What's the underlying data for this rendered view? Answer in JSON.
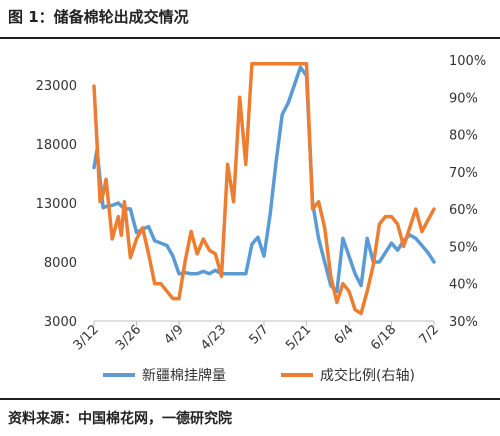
{
  "header": {
    "title": "图 1：储备棉轮出成交情况"
  },
  "footer": {
    "source": "资料来源：中国棉花网，一德研究院"
  },
  "chart_data": {
    "type": "line",
    "title": "",
    "x_tick_labels": [
      "3/12",
      "3/26",
      "4/9",
      "4/23",
      "5/7",
      "5/21",
      "6/4",
      "6/18",
      "7/2"
    ],
    "left_axis": {
      "ylim": [
        3000,
        23000
      ],
      "ticks": [
        "23000",
        "18000",
        "13000",
        "8000",
        "3000"
      ]
    },
    "right_axis": {
      "ylim": [
        30,
        100
      ],
      "ticks": [
        "100%",
        "90%",
        "80%",
        "70%",
        "60%",
        "50%",
        "40%",
        "30%"
      ]
    },
    "x_range": [
      0,
      112
    ],
    "legend_position": "bottom",
    "grid": false,
    "colors": {
      "listed": "#5b9bd5",
      "ratio": "#ed7d31"
    },
    "series": [
      {
        "name": "新疆棉挂牌量",
        "axis": "left",
        "x": [
          0,
          1,
          3,
          4,
          6,
          8,
          10,
          12,
          14,
          16,
          18,
          20,
          22,
          24,
          26,
          28,
          30,
          32,
          34,
          36,
          38,
          40,
          42,
          44,
          46,
          48,
          50,
          52,
          54,
          56,
          58,
          60,
          62,
          64,
          66,
          68,
          70,
          72,
          74,
          76,
          78,
          80,
          82,
          84,
          86,
          88,
          90,
          92,
          94,
          96,
          98,
          100,
          102,
          104,
          106,
          108,
          110,
          112
        ],
        "values": [
          16000,
          17500,
          12600,
          12700,
          12800,
          13000,
          12500,
          12500,
          10500,
          10800,
          11000,
          9800,
          9600,
          9400,
          8500,
          7000,
          7100,
          7000,
          7000,
          7200,
          7000,
          7300,
          7000,
          7000,
          7000,
          7000,
          7000,
          9500,
          10100,
          8500,
          12000,
          16500,
          20500,
          21500,
          23000,
          24500,
          23800,
          13000,
          10000,
          8000,
          6000,
          5500,
          10000,
          8500,
          7000,
          6000,
          10000,
          8000,
          8000,
          8800,
          9600,
          9000,
          9800,
          10300,
          10000,
          9400,
          8800,
          8000
        ]
      },
      {
        "name": "成交比例(右轴)",
        "axis": "right",
        "x": [
          0,
          1,
          2,
          3,
          4,
          6,
          8,
          9,
          10,
          12,
          14,
          16,
          18,
          20,
          22,
          24,
          26,
          28,
          30,
          32,
          34,
          36,
          38,
          40,
          42,
          44,
          46,
          48,
          50,
          52,
          54,
          56,
          58,
          60,
          61,
          62,
          63,
          64,
          66,
          68,
          70,
          72,
          74,
          76,
          78,
          80,
          82,
          84,
          86,
          88,
          90,
          92,
          94,
          96,
          98,
          100,
          102,
          104,
          106,
          108,
          110,
          112
        ],
        "values": [
          93,
          78,
          62,
          64,
          68,
          52,
          58,
          53,
          62,
          47,
          52,
          55,
          48,
          40,
          40,
          38,
          36,
          36,
          46,
          54,
          48,
          52,
          49,
          48,
          42,
          72,
          62,
          90,
          72,
          99,
          99,
          99,
          99,
          99,
          99,
          99,
          99,
          99,
          99,
          99,
          99,
          60,
          62,
          55,
          42,
          35,
          40,
          38,
          33,
          32,
          38,
          45,
          56,
          58,
          58,
          56,
          50,
          55,
          60,
          54,
          57,
          60
        ]
      }
    ]
  }
}
